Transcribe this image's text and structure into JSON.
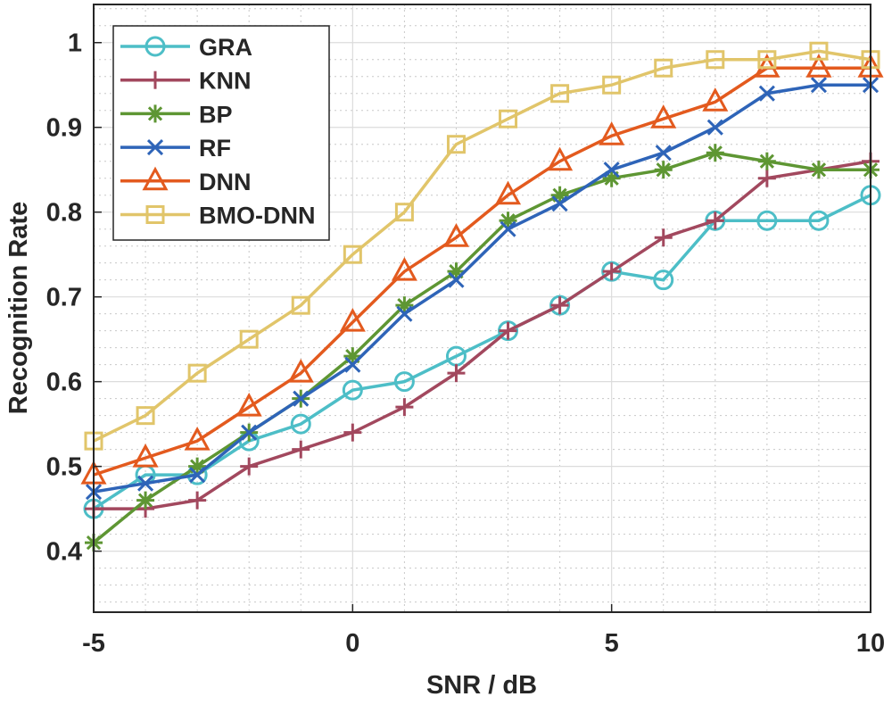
{
  "chart_data": {
    "type": "line",
    "title": "",
    "xlabel": "SNR / dB",
    "ylabel": "Recognition Rate",
    "xlim": [
      -5,
      10
    ],
    "ylim": [
      0.328,
      1.045
    ],
    "xticks": [
      -5,
      0,
      5,
      10
    ],
    "xtick_labels": [
      "-5",
      "0",
      "5",
      "10"
    ],
    "yticks": [
      0.4,
      0.5,
      0.6,
      0.7,
      0.8,
      0.9,
      1.0
    ],
    "ytick_labels": [
      "0.4",
      "0.5",
      "0.6",
      "0.7",
      "0.8",
      "0.9",
      "1"
    ],
    "grid": true,
    "minor_grid": true,
    "legend_position": "top-left",
    "x": [
      -5,
      -4,
      -3,
      -2,
      -1,
      0,
      1,
      2,
      3,
      4,
      5,
      6,
      7,
      8,
      9,
      10
    ],
    "series": [
      {
        "name": "GRA",
        "color": "#4DBEC7",
        "marker": "circle",
        "values": [
          0.45,
          0.49,
          0.49,
          0.53,
          0.55,
          0.59,
          0.6,
          0.63,
          0.66,
          0.69,
          0.73,
          0.72,
          0.79,
          0.79,
          0.79,
          0.82
        ]
      },
      {
        "name": "KNN",
        "color": "#A2485E",
        "marker": "plus",
        "values": [
          0.45,
          0.45,
          0.46,
          0.5,
          0.52,
          0.54,
          0.57,
          0.61,
          0.66,
          0.69,
          0.73,
          0.77,
          0.79,
          0.84,
          0.85,
          0.86
        ]
      },
      {
        "name": "BP",
        "color": "#5E9633",
        "marker": "asterisk",
        "values": [
          0.41,
          0.46,
          0.5,
          0.54,
          0.58,
          0.63,
          0.69,
          0.73,
          0.79,
          0.82,
          0.84,
          0.85,
          0.87,
          0.86,
          0.85,
          0.85
        ]
      },
      {
        "name": "RF",
        "color": "#2E64B8",
        "marker": "x",
        "values": [
          0.47,
          0.48,
          0.49,
          0.54,
          0.58,
          0.62,
          0.68,
          0.72,
          0.78,
          0.81,
          0.85,
          0.87,
          0.9,
          0.94,
          0.95,
          0.95
        ]
      },
      {
        "name": "DNN",
        "color": "#E35A1E",
        "marker": "triangle",
        "values": [
          0.49,
          0.51,
          0.53,
          0.57,
          0.61,
          0.67,
          0.73,
          0.77,
          0.82,
          0.86,
          0.89,
          0.91,
          0.93,
          0.97,
          0.97,
          0.97
        ]
      },
      {
        "name": "BMO-DNN",
        "color": "#E1C56A",
        "marker": "square",
        "values": [
          0.53,
          0.56,
          0.61,
          0.65,
          0.69,
          0.75,
          0.8,
          0.88,
          0.91,
          0.94,
          0.95,
          0.97,
          0.98,
          0.98,
          0.99,
          0.98
        ]
      }
    ]
  }
}
